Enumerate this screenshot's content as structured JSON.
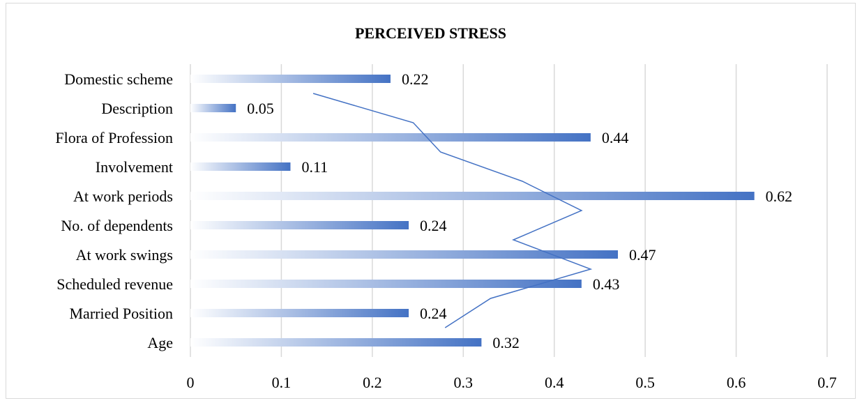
{
  "chart_data": {
    "type": "bar",
    "orientation": "horizontal",
    "title": "PERCEIVED STRESS",
    "categories": [
      "Age",
      "Married Position",
      "Scheduled revenue",
      "At work swings",
      "No. of dependents",
      "At work periods",
      "Involvement",
      "Flora of Profession",
      "Description",
      "Domestic scheme"
    ],
    "values": [
      0.32,
      0.24,
      0.43,
      0.47,
      0.24,
      0.62,
      0.11,
      0.44,
      0.05,
      0.22
    ],
    "data_labels": [
      "0.32",
      "0.24",
      "0.43",
      "0.47",
      "0.24",
      "0.62",
      "0.11",
      "0.44",
      "0.05",
      "0.22"
    ],
    "xlim": [
      0,
      0.7
    ],
    "x_ticks": [
      "0",
      "0.1",
      "0.2",
      "0.3",
      "0.4",
      "0.5",
      "0.6",
      "0.7"
    ],
    "grid": "vertical",
    "legend": "none",
    "overlay_line": {
      "type": "line",
      "values": [
        0.28,
        0.33,
        0.44,
        0.355,
        0.43,
        0.365,
        0.275,
        0.245,
        0.135
      ]
    },
    "colors": {
      "bar": "#4472c4",
      "bar_fade": "#ffffff",
      "line": "#4472c4",
      "grid": "#d9d9d9"
    }
  }
}
